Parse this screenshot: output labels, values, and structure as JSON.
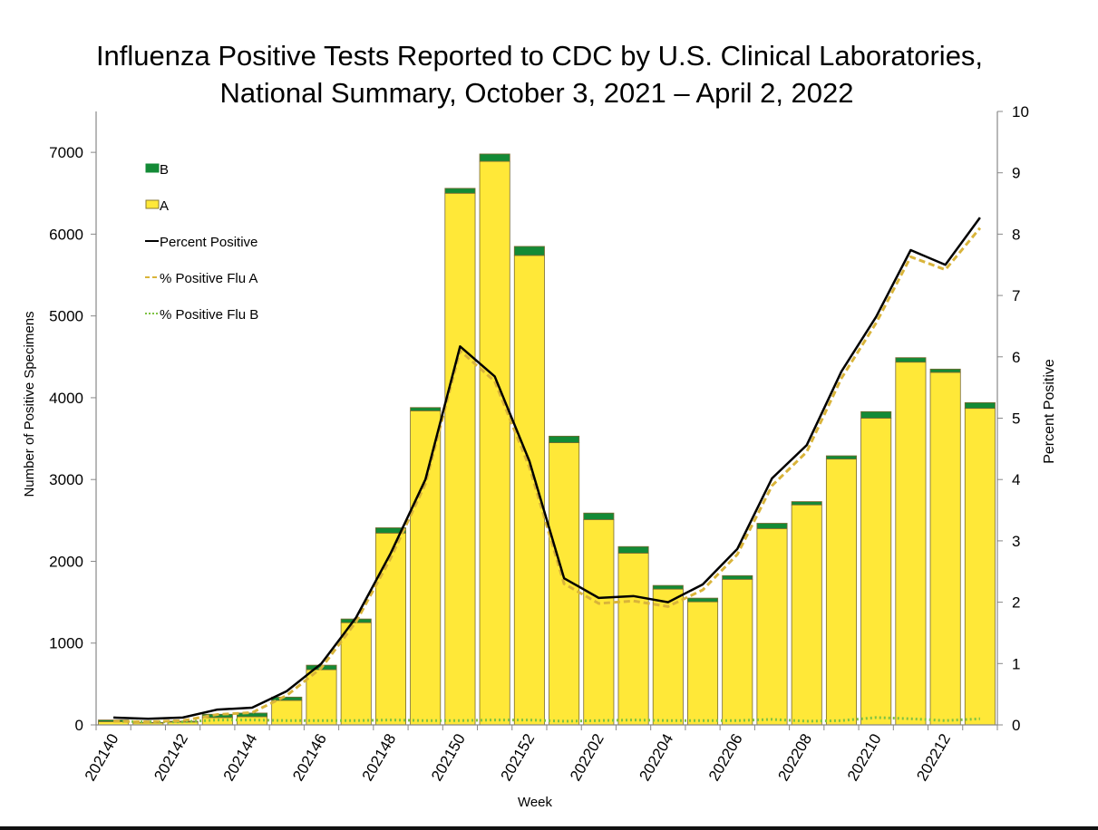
{
  "chart_data": {
    "type": "bar",
    "title_line1": "Influenza Positive Tests Reported to CDC by U.S. Clinical Laboratories,",
    "title_line2": "National Summary, October 3, 2021 – April 2, 2022",
    "xlabel": "Week",
    "ylabel": "Number of Positive Specimens",
    "y2label": "Percent Positive",
    "ylim": [
      0,
      7500
    ],
    "y2lim": [
      0,
      10
    ],
    "yticks": [
      0,
      1000,
      2000,
      3000,
      4000,
      5000,
      6000,
      7000
    ],
    "y2ticks": [
      0,
      1,
      2,
      3,
      4,
      5,
      6,
      7,
      8,
      9,
      10
    ],
    "grid": false,
    "legend_position": "top-left",
    "categories": [
      "202140",
      "202141",
      "202142",
      "202143",
      "202144",
      "202145",
      "202146",
      "202147",
      "202148",
      "202149",
      "202150",
      "202151",
      "202152",
      "202201",
      "202202",
      "202203",
      "202204",
      "202205",
      "202206",
      "202207",
      "202208",
      "202209",
      "202210",
      "202211",
      "202212",
      "202213"
    ],
    "xtick_labels_shown": [
      "202140",
      "202142",
      "202144",
      "202146",
      "202148",
      "202150",
      "202152",
      "202202",
      "202204",
      "202206",
      "202208",
      "202210",
      "202212"
    ],
    "stacked_series": [
      {
        "name": "A",
        "color": "#FFE838",
        "values": [
          40,
          25,
          35,
          90,
          100,
          300,
          675,
          1250,
          2345,
          3840,
          6500,
          6890,
          5740,
          3450,
          2510,
          2100,
          1660,
          1505,
          1780,
          2400,
          2690,
          3250,
          3750,
          4435,
          4310,
          3870
        ]
      },
      {
        "name": "B",
        "color": "#138A36",
        "values": [
          20,
          5,
          10,
          40,
          45,
          40,
          55,
          45,
          65,
          40,
          60,
          90,
          110,
          80,
          80,
          80,
          45,
          45,
          45,
          65,
          40,
          40,
          80,
          55,
          40,
          70
        ]
      }
    ],
    "line_series": [
      {
        "name": "Percent Positive",
        "color": "#000000",
        "style": "solid",
        "values": [
          0.12,
          0.1,
          0.12,
          0.25,
          0.28,
          0.55,
          1.0,
          1.75,
          2.8,
          4.0,
          6.17,
          5.68,
          4.3,
          2.39,
          2.07,
          2.1,
          2.0,
          2.29,
          2.87,
          4.02,
          4.56,
          5.76,
          6.65,
          7.74,
          7.5,
          8.27
        ]
      },
      {
        "name": "% Positive Flu A",
        "color": "#D9B43A",
        "style": "dashed",
        "values": [
          0.06,
          0.05,
          0.07,
          0.17,
          0.2,
          0.48,
          0.93,
          1.68,
          2.72,
          3.93,
          6.1,
          5.6,
          4.2,
          2.3,
          1.98,
          2.02,
          1.93,
          2.2,
          2.78,
          3.9,
          4.45,
          5.65,
          6.55,
          7.63,
          7.42,
          8.1
        ]
      },
      {
        "name": "% Positive Flu B",
        "color": "#7DC242",
        "style": "dotted",
        "values": [
          0.06,
          0.05,
          0.05,
          0.08,
          0.08,
          0.07,
          0.07,
          0.07,
          0.08,
          0.07,
          0.07,
          0.08,
          0.08,
          0.06,
          0.07,
          0.08,
          0.07,
          0.07,
          0.07,
          0.09,
          0.06,
          0.07,
          0.12,
          0.1,
          0.07,
          0.1
        ]
      }
    ],
    "legend": [
      {
        "label": "B",
        "kind": "box",
        "color": "#138A36"
      },
      {
        "label": "A",
        "kind": "box",
        "color": "#FFE838"
      },
      {
        "label": "Percent Positive",
        "kind": "solid",
        "color": "#000000"
      },
      {
        "label": "% Positive Flu A",
        "kind": "dashed",
        "color": "#D9B43A"
      },
      {
        "label": "% Positive Flu B",
        "kind": "dotted",
        "color": "#7DC242"
      }
    ]
  }
}
